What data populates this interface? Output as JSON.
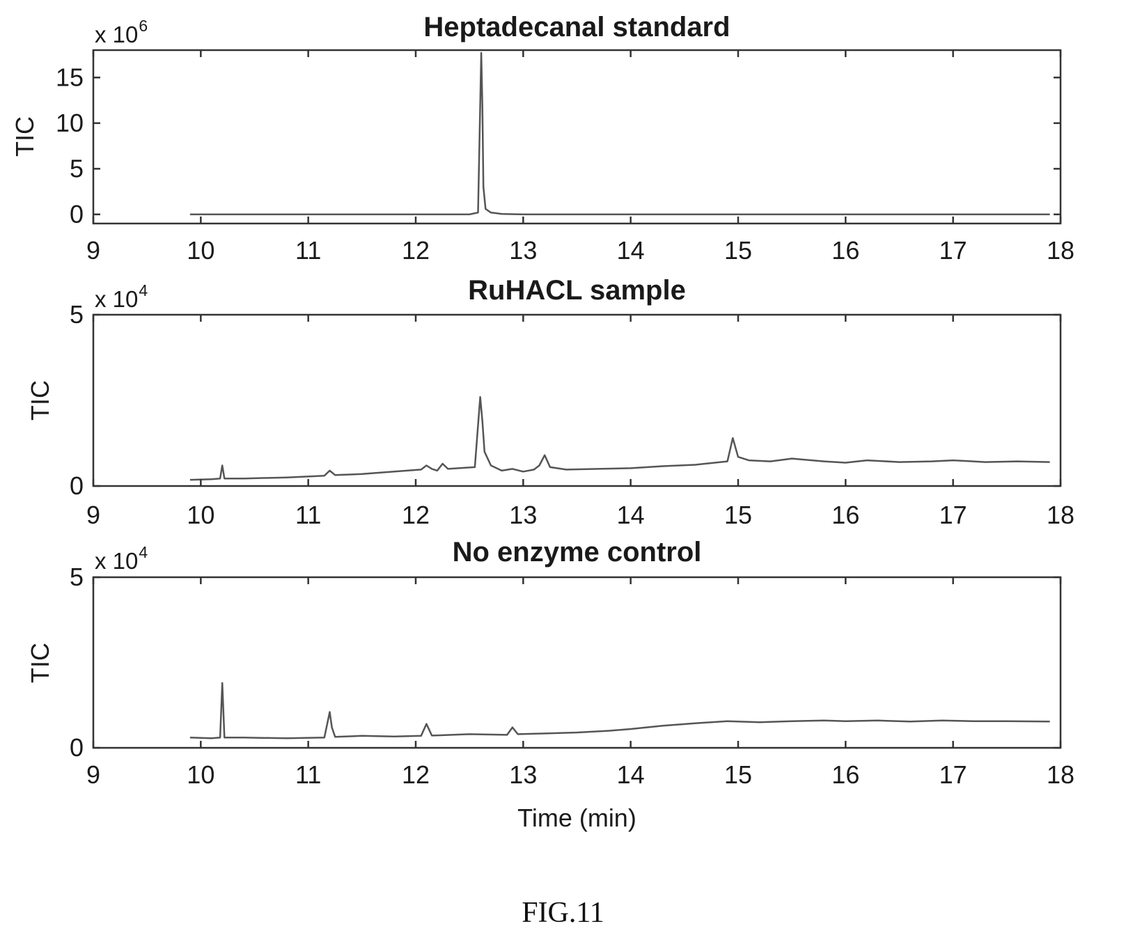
{
  "chart_data": [
    {
      "type": "line",
      "title": "Heptadecanal standard",
      "xlabel": "",
      "ylabel": "TIC",
      "y_multiplier": "x 10",
      "y_exponent": "6",
      "xlim": [
        9,
        18
      ],
      "ylim": [
        -1,
        18
      ],
      "xticks": [
        "9",
        "10",
        "11",
        "12",
        "13",
        "14",
        "15",
        "16",
        "17",
        "18"
      ],
      "yticks": [
        "0",
        "5",
        "10",
        "15"
      ],
      "series": [
        {
          "x": [
            9.9,
            10.5,
            11.0,
            11.5,
            12.0,
            12.5,
            12.58,
            12.6,
            12.61,
            12.62,
            12.63,
            12.65,
            12.7,
            12.8,
            13.0,
            14.0,
            15.0,
            16.0,
            17.0,
            17.9
          ],
          "y": [
            0,
            0,
            0,
            0,
            0,
            0,
            0.2,
            12,
            17.7,
            12,
            3,
            0.6,
            0.2,
            0.05,
            0,
            0,
            0,
            0,
            0,
            0
          ]
        }
      ]
    },
    {
      "type": "line",
      "title": "RuHACL sample",
      "xlabel": "",
      "ylabel": "TIC",
      "y_multiplier": "x 10",
      "y_exponent": "4",
      "xlim": [
        9,
        18
      ],
      "ylim": [
        0,
        5
      ],
      "xticks": [
        "9",
        "10",
        "11",
        "12",
        "13",
        "14",
        "15",
        "16",
        "17",
        "18"
      ],
      "yticks": [
        "0",
        "5"
      ],
      "series": [
        {
          "x": [
            9.9,
            10.1,
            10.18,
            10.2,
            10.22,
            10.4,
            10.8,
            11.15,
            11.2,
            11.25,
            11.5,
            11.8,
            12.05,
            12.1,
            12.15,
            12.2,
            12.25,
            12.3,
            12.55,
            12.6,
            12.62,
            12.64,
            12.7,
            12.8,
            12.9,
            13.0,
            13.1,
            13.15,
            13.2,
            13.25,
            13.4,
            13.7,
            14.0,
            14.3,
            14.6,
            14.9,
            14.95,
            15.0,
            15.1,
            15.3,
            15.5,
            15.8,
            16.0,
            16.2,
            16.5,
            16.8,
            17.0,
            17.3,
            17.6,
            17.9
          ],
          "y": [
            0.18,
            0.2,
            0.22,
            0.6,
            0.22,
            0.22,
            0.25,
            0.3,
            0.45,
            0.32,
            0.35,
            0.42,
            0.48,
            0.6,
            0.5,
            0.45,
            0.65,
            0.5,
            0.55,
            2.6,
            1.9,
            1.0,
            0.6,
            0.45,
            0.5,
            0.42,
            0.48,
            0.6,
            0.9,
            0.55,
            0.48,
            0.5,
            0.52,
            0.58,
            0.62,
            0.72,
            1.4,
            0.85,
            0.75,
            0.72,
            0.8,
            0.72,
            0.68,
            0.75,
            0.7,
            0.72,
            0.75,
            0.7,
            0.72,
            0.7
          ]
        }
      ]
    },
    {
      "type": "line",
      "title": "No enzyme control",
      "xlabel": "Time (min)",
      "ylabel": "TIC",
      "y_multiplier": "x 10",
      "y_exponent": "4",
      "xlim": [
        9,
        18
      ],
      "ylim": [
        0,
        5
      ],
      "xticks": [
        "9",
        "10",
        "11",
        "12",
        "13",
        "14",
        "15",
        "16",
        "17",
        "18"
      ],
      "yticks": [
        "0",
        "5"
      ],
      "series": [
        {
          "x": [
            9.9,
            10.1,
            10.18,
            10.2,
            10.22,
            10.4,
            10.8,
            11.15,
            11.2,
            11.22,
            11.25,
            11.5,
            11.8,
            12.05,
            12.1,
            12.15,
            12.5,
            12.85,
            12.9,
            12.95,
            13.2,
            13.5,
            13.8,
            14.0,
            14.3,
            14.6,
            14.9,
            15.2,
            15.5,
            15.8,
            16.0,
            16.3,
            16.6,
            16.9,
            17.2,
            17.5,
            17.9
          ],
          "y": [
            0.3,
            0.28,
            0.3,
            1.9,
            0.3,
            0.3,
            0.28,
            0.3,
            1.05,
            0.6,
            0.32,
            0.35,
            0.33,
            0.35,
            0.7,
            0.36,
            0.4,
            0.38,
            0.6,
            0.4,
            0.42,
            0.45,
            0.5,
            0.55,
            0.65,
            0.72,
            0.78,
            0.75,
            0.78,
            0.8,
            0.78,
            0.8,
            0.77,
            0.8,
            0.78,
            0.78,
            0.77
          ]
        }
      ]
    }
  ],
  "figure_caption": "FIG.11"
}
